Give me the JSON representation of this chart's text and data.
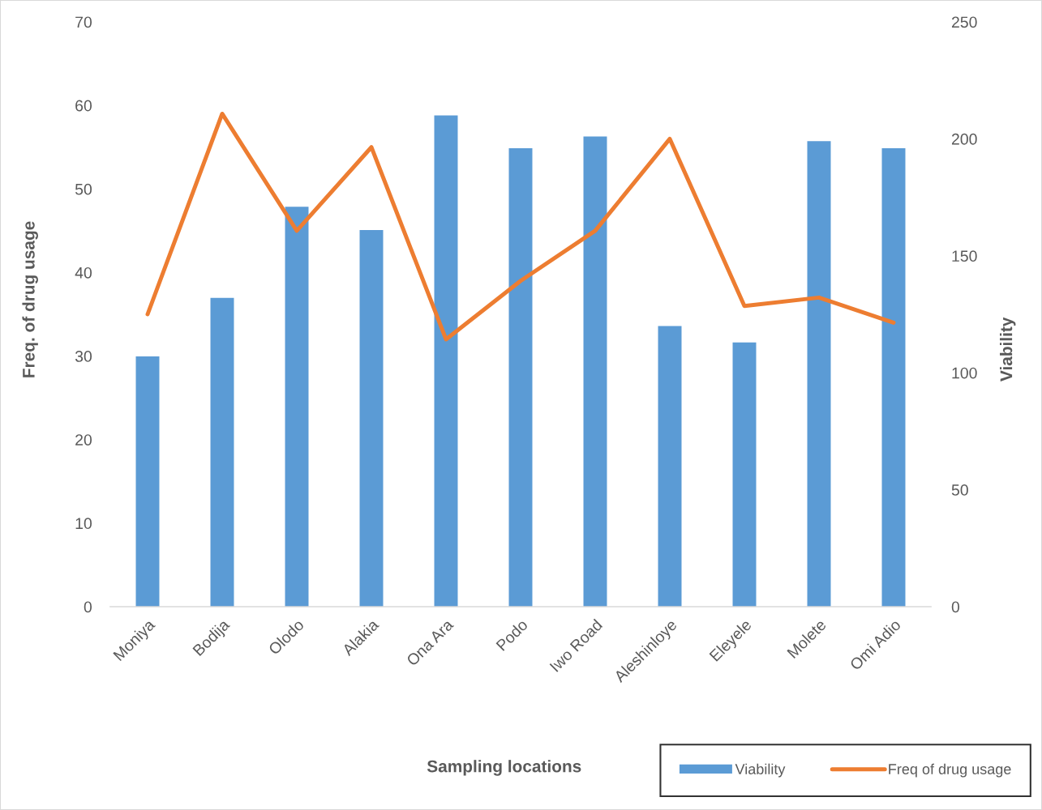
{
  "chart_data": {
    "type": "bar",
    "categories": [
      "Moniya",
      "Bodija",
      "Olodo",
      "Alakia",
      "Ona Ara",
      "Podo",
      "Iwo Road",
      "Aleshinloye",
      "Eleyele",
      "Molete",
      "Omi Adio"
    ],
    "xlabel": "Sampling locations",
    "ylabel": "Freq. of drug usage",
    "y2label": "Viability",
    "ylim": [
      0,
      70
    ],
    "yticks": [
      0,
      10,
      20,
      30,
      40,
      50,
      60,
      70
    ],
    "y2lim": [
      0,
      250
    ],
    "y2ticks": [
      0,
      50,
      100,
      150,
      200,
      250
    ],
    "legend": "bottom right",
    "series": [
      {
        "name": "Viability",
        "axis": "y2",
        "color": "#5b9bd5",
        "values": [
          107,
          132,
          171,
          161,
          210,
          196,
          201,
          120,
          113,
          199,
          196
        ]
      },
      {
        "name": "Freq of drug usage",
        "type": "line",
        "color": "#ed7d31",
        "values": [
          35,
          59,
          45,
          55,
          32,
          39,
          45,
          56,
          36,
          37,
          34
        ]
      }
    ]
  }
}
